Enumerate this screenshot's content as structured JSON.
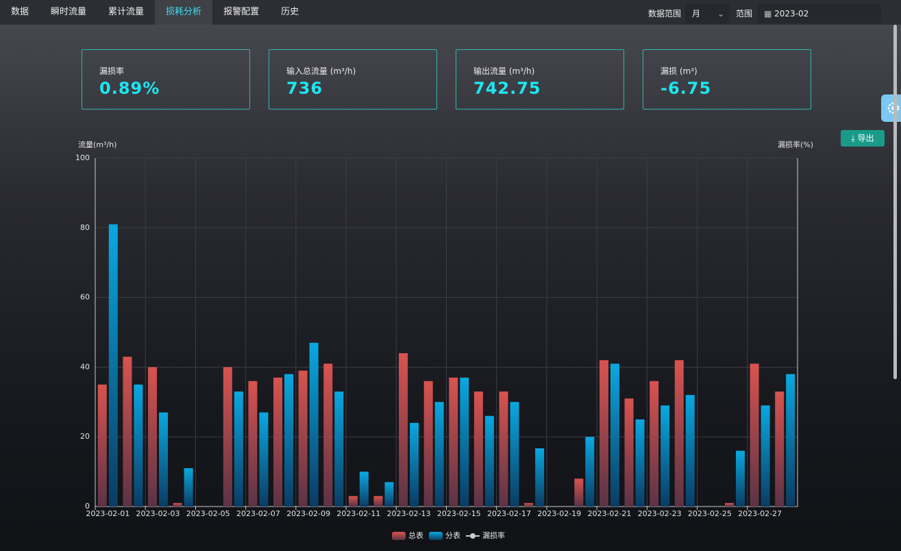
{
  "nav": {
    "items": [
      "数据",
      "瞬时流量",
      "累计流量",
      "损耗分析",
      "报警配置",
      "历史"
    ],
    "active": 3
  },
  "filters": {
    "range_label": "数据范围",
    "range_value": "月",
    "scope_label": "范围",
    "date": "2023-02"
  },
  "cards": [
    {
      "label": "漏损率",
      "value": "0.89%"
    },
    {
      "label": "输入总流量 (m³/h)",
      "value": "736"
    },
    {
      "label": "输出流量 (m³/h)",
      "value": "742.75"
    },
    {
      "label": "漏损 (m³)",
      "value": "-6.75"
    }
  ],
  "export": "导出",
  "chart_data": {
    "type": "bar",
    "y_label": "流量(m³/h)",
    "y2_label": "漏损率(%)",
    "categories": [
      "2023-02-01",
      null,
      "2023-02-03",
      null,
      "2023-02-05",
      null,
      "2023-02-07",
      null,
      "2023-02-09",
      null,
      "2023-02-11",
      null,
      "2023-02-13",
      null,
      "2023-02-15",
      null,
      "2023-02-17",
      null,
      "2023-02-19",
      null,
      "2023-02-21",
      null,
      "2023-02-23",
      null,
      "2023-02-25",
      null,
      "2023-02-27",
      null
    ],
    "series": [
      {
        "name": "总表",
        "color": "#d9534f",
        "values": [
          35,
          43,
          40,
          1,
          0,
          40,
          36,
          37,
          39,
          41,
          3,
          3,
          44,
          36,
          37,
          33,
          33,
          1,
          0,
          8,
          42,
          31,
          36,
          42,
          0,
          1,
          41,
          33
        ]
      },
      {
        "name": "分表",
        "color": "#0aa8e0",
        "values": [
          81,
          35,
          27,
          11,
          0,
          33,
          27,
          38,
          47,
          33,
          10,
          7,
          24,
          30,
          37,
          26,
          30,
          16.7,
          0,
          20,
          41,
          25,
          29,
          32,
          0,
          16,
          29,
          38
        ]
      },
      {
        "name": "漏损率",
        "color": "#cccccc",
        "type": "line",
        "axis": "y2",
        "values": [
          null,
          null,
          null,
          null,
          null,
          null,
          null,
          null,
          null,
          null,
          null,
          null,
          null,
          null,
          null,
          null,
          null,
          null,
          null,
          null,
          null,
          null,
          null,
          null,
          null,
          null,
          null,
          null
        ]
      }
    ],
    "ylim": [
      0,
      100
    ],
    "yticks": [
      0,
      20,
      40,
      60,
      80,
      100
    ],
    "grid": true,
    "legend": "bottom"
  }
}
